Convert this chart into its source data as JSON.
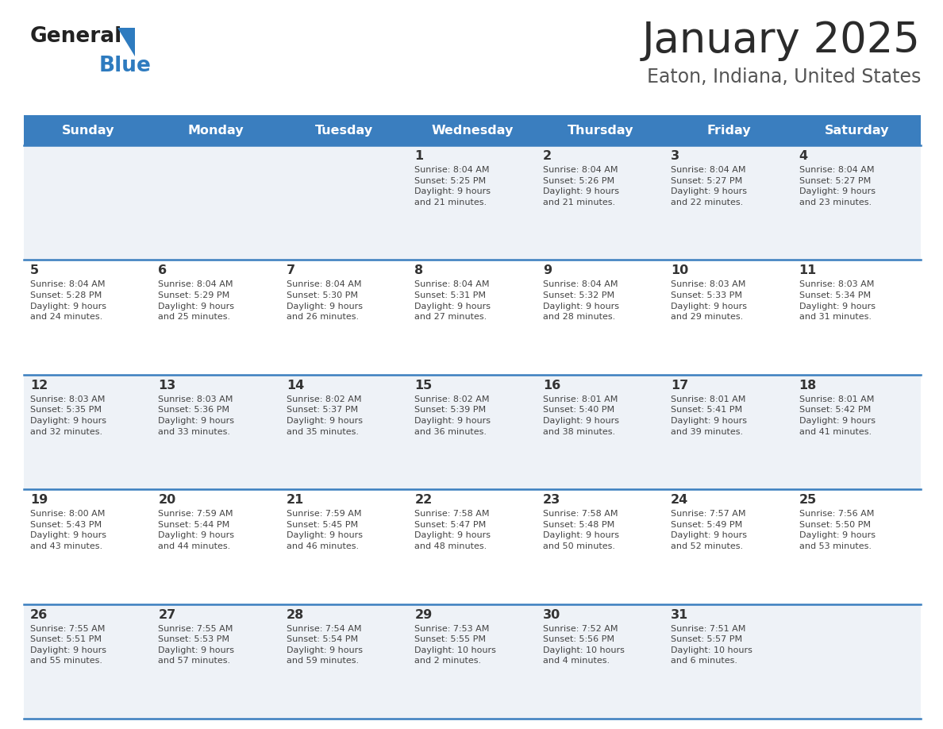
{
  "title": "January 2025",
  "subtitle": "Eaton, Indiana, United States",
  "header_color": "#3a7ebf",
  "header_text_color": "#ffffff",
  "day_names": [
    "Sunday",
    "Monday",
    "Tuesday",
    "Wednesday",
    "Thursday",
    "Friday",
    "Saturday"
  ],
  "row_colors": [
    "#eef2f7",
    "#ffffff"
  ],
  "border_color": "#3a7ebf",
  "text_color": "#444444",
  "number_color": "#333333",
  "logo_general_color": "#222222",
  "logo_blue_color": "#2e7bbf",
  "weeks": [
    [
      {
        "day": "",
        "info": ""
      },
      {
        "day": "",
        "info": ""
      },
      {
        "day": "",
        "info": ""
      },
      {
        "day": "1",
        "info": "Sunrise: 8:04 AM\nSunset: 5:25 PM\nDaylight: 9 hours\nand 21 minutes."
      },
      {
        "day": "2",
        "info": "Sunrise: 8:04 AM\nSunset: 5:26 PM\nDaylight: 9 hours\nand 21 minutes."
      },
      {
        "day": "3",
        "info": "Sunrise: 8:04 AM\nSunset: 5:27 PM\nDaylight: 9 hours\nand 22 minutes."
      },
      {
        "day": "4",
        "info": "Sunrise: 8:04 AM\nSunset: 5:27 PM\nDaylight: 9 hours\nand 23 minutes."
      }
    ],
    [
      {
        "day": "5",
        "info": "Sunrise: 8:04 AM\nSunset: 5:28 PM\nDaylight: 9 hours\nand 24 minutes."
      },
      {
        "day": "6",
        "info": "Sunrise: 8:04 AM\nSunset: 5:29 PM\nDaylight: 9 hours\nand 25 minutes."
      },
      {
        "day": "7",
        "info": "Sunrise: 8:04 AM\nSunset: 5:30 PM\nDaylight: 9 hours\nand 26 minutes."
      },
      {
        "day": "8",
        "info": "Sunrise: 8:04 AM\nSunset: 5:31 PM\nDaylight: 9 hours\nand 27 minutes."
      },
      {
        "day": "9",
        "info": "Sunrise: 8:04 AM\nSunset: 5:32 PM\nDaylight: 9 hours\nand 28 minutes."
      },
      {
        "day": "10",
        "info": "Sunrise: 8:03 AM\nSunset: 5:33 PM\nDaylight: 9 hours\nand 29 minutes."
      },
      {
        "day": "11",
        "info": "Sunrise: 8:03 AM\nSunset: 5:34 PM\nDaylight: 9 hours\nand 31 minutes."
      }
    ],
    [
      {
        "day": "12",
        "info": "Sunrise: 8:03 AM\nSunset: 5:35 PM\nDaylight: 9 hours\nand 32 minutes."
      },
      {
        "day": "13",
        "info": "Sunrise: 8:03 AM\nSunset: 5:36 PM\nDaylight: 9 hours\nand 33 minutes."
      },
      {
        "day": "14",
        "info": "Sunrise: 8:02 AM\nSunset: 5:37 PM\nDaylight: 9 hours\nand 35 minutes."
      },
      {
        "day": "15",
        "info": "Sunrise: 8:02 AM\nSunset: 5:39 PM\nDaylight: 9 hours\nand 36 minutes."
      },
      {
        "day": "16",
        "info": "Sunrise: 8:01 AM\nSunset: 5:40 PM\nDaylight: 9 hours\nand 38 minutes."
      },
      {
        "day": "17",
        "info": "Sunrise: 8:01 AM\nSunset: 5:41 PM\nDaylight: 9 hours\nand 39 minutes."
      },
      {
        "day": "18",
        "info": "Sunrise: 8:01 AM\nSunset: 5:42 PM\nDaylight: 9 hours\nand 41 minutes."
      }
    ],
    [
      {
        "day": "19",
        "info": "Sunrise: 8:00 AM\nSunset: 5:43 PM\nDaylight: 9 hours\nand 43 minutes."
      },
      {
        "day": "20",
        "info": "Sunrise: 7:59 AM\nSunset: 5:44 PM\nDaylight: 9 hours\nand 44 minutes."
      },
      {
        "day": "21",
        "info": "Sunrise: 7:59 AM\nSunset: 5:45 PM\nDaylight: 9 hours\nand 46 minutes."
      },
      {
        "day": "22",
        "info": "Sunrise: 7:58 AM\nSunset: 5:47 PM\nDaylight: 9 hours\nand 48 minutes."
      },
      {
        "day": "23",
        "info": "Sunrise: 7:58 AM\nSunset: 5:48 PM\nDaylight: 9 hours\nand 50 minutes."
      },
      {
        "day": "24",
        "info": "Sunrise: 7:57 AM\nSunset: 5:49 PM\nDaylight: 9 hours\nand 52 minutes."
      },
      {
        "day": "25",
        "info": "Sunrise: 7:56 AM\nSunset: 5:50 PM\nDaylight: 9 hours\nand 53 minutes."
      }
    ],
    [
      {
        "day": "26",
        "info": "Sunrise: 7:55 AM\nSunset: 5:51 PM\nDaylight: 9 hours\nand 55 minutes."
      },
      {
        "day": "27",
        "info": "Sunrise: 7:55 AM\nSunset: 5:53 PM\nDaylight: 9 hours\nand 57 minutes."
      },
      {
        "day": "28",
        "info": "Sunrise: 7:54 AM\nSunset: 5:54 PM\nDaylight: 9 hours\nand 59 minutes."
      },
      {
        "day": "29",
        "info": "Sunrise: 7:53 AM\nSunset: 5:55 PM\nDaylight: 10 hours\nand 2 minutes."
      },
      {
        "day": "30",
        "info": "Sunrise: 7:52 AM\nSunset: 5:56 PM\nDaylight: 10 hours\nand 4 minutes."
      },
      {
        "day": "31",
        "info": "Sunrise: 7:51 AM\nSunset: 5:57 PM\nDaylight: 10 hours\nand 6 minutes."
      },
      {
        "day": "",
        "info": ""
      }
    ]
  ]
}
